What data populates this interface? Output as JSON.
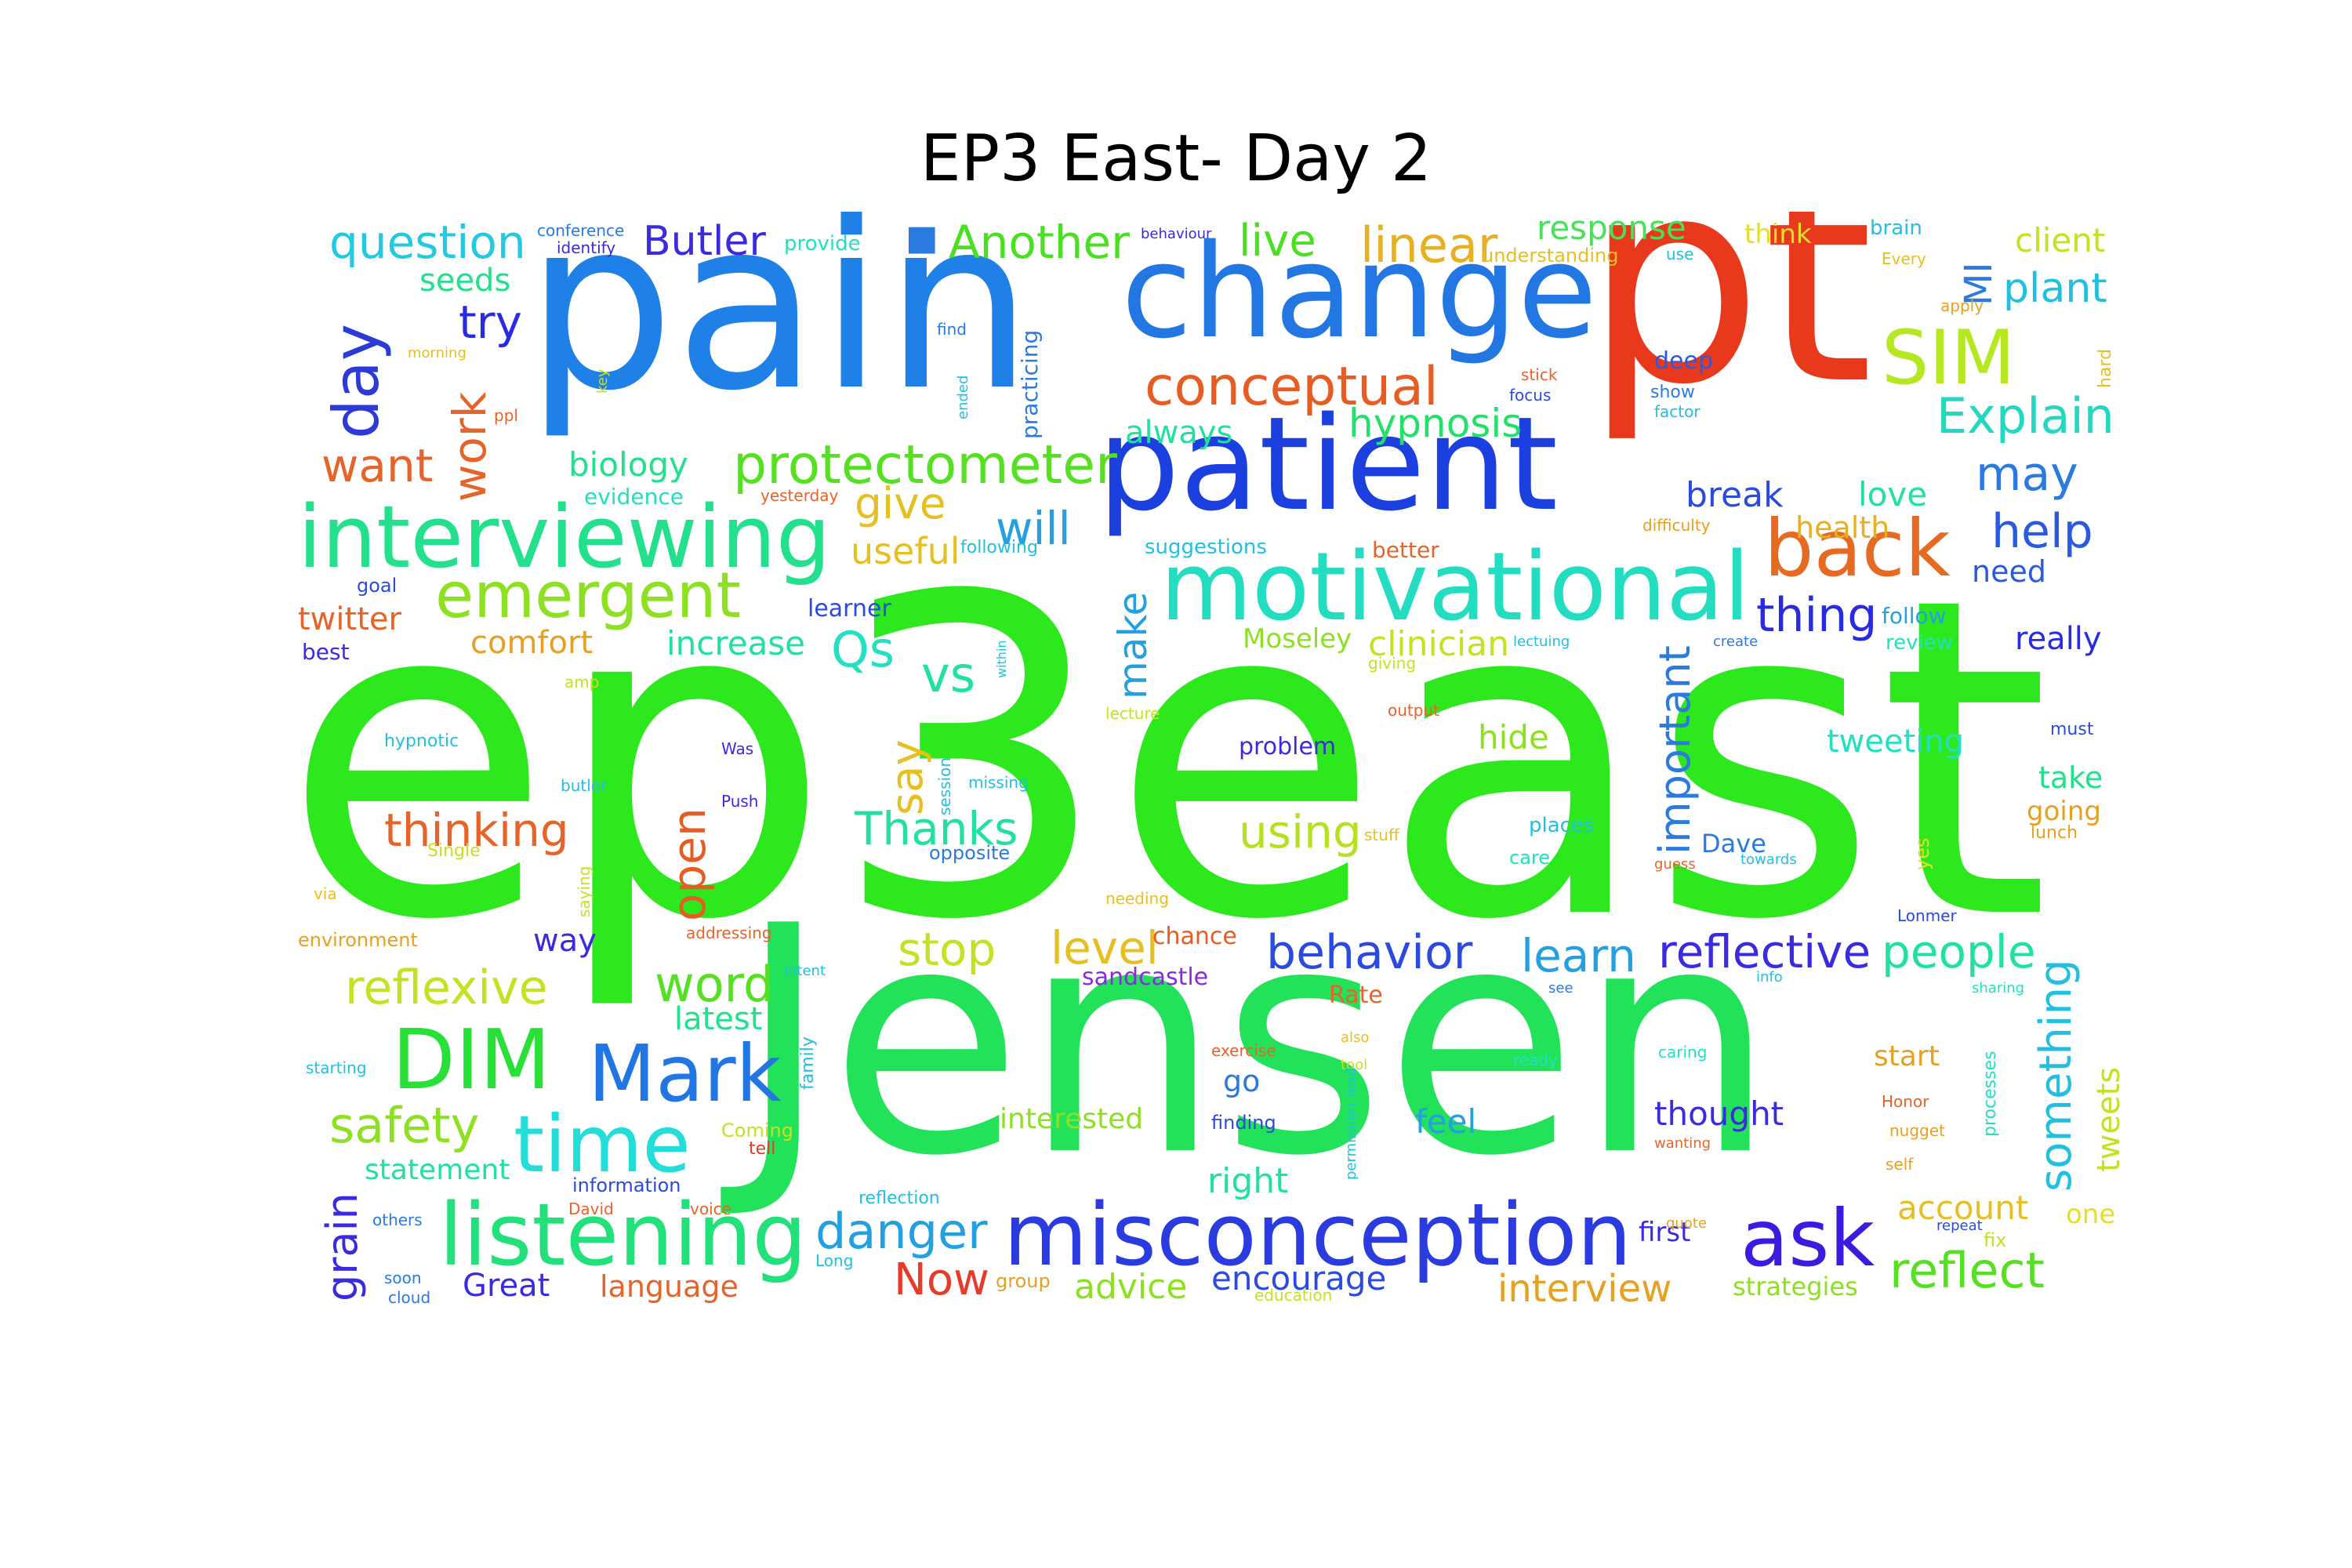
{
  "title": "EP3 East- Day 2",
  "words": {
    "ep3east": {
      "text": "ep3east",
      "color": "#2ee81e"
    },
    "Jensen": {
      "text": "Jensen",
      "color": "#22e25a"
    },
    "pain": {
      "text": "pain",
      "color": "#1f80e8"
    },
    "pt": {
      "text": "pt",
      "color": "#e8391c"
    },
    "change": {
      "text": "change",
      "color": "#2277e3"
    },
    "patient": {
      "text": "patient",
      "color": "#1c3fe0"
    },
    "motivational": {
      "text": "motivational",
      "color": "#22ddc0"
    },
    "interviewing": {
      "text": "interviewing",
      "color": "#22e08c"
    },
    "misconception": {
      "text": "misconception",
      "color": "#2a3be0"
    },
    "listening": {
      "text": "listening",
      "color": "#22e07a"
    },
    "Mark": {
      "text": "Mark",
      "color": "#2276e3"
    },
    "time": {
      "text": "time",
      "color": "#22ddd8"
    },
    "DIM": {
      "text": "DIM",
      "color": "#28e038"
    },
    "ask": {
      "text": "ask",
      "color": "#3a1ce0"
    },
    "back": {
      "text": "back",
      "color": "#e66a22"
    },
    "SIM": {
      "text": "SIM",
      "color": "#b6e822"
    },
    "emergent": {
      "text": "emergent",
      "color": "#8ee022"
    },
    "protectometer": {
      "text": "protectometer",
      "color": "#56e022"
    },
    "conceptual": {
      "text": "conceptual",
      "color": "#e65c22"
    },
    "day": {
      "text": "day",
      "color": "#2c3ad8"
    },
    "question": {
      "text": "question",
      "color": "#22c9e0"
    },
    "Butler": {
      "text": "Butler",
      "color": "#3a2ae0"
    },
    "Another": {
      "text": "Another",
      "color": "#4ae022"
    },
    "live": {
      "text": "live",
      "color": "#4ae022"
    },
    "linear": {
      "text": "linear",
      "color": "#e6b022"
    },
    "response": {
      "text": "response",
      "color": "#4ae05a"
    },
    "client": {
      "text": "client",
      "color": "#c6e022"
    },
    "plant": {
      "text": "plant",
      "color": "#22c0e0"
    },
    "Explain": {
      "text": "Explain",
      "color": "#22d8c0"
    },
    "may": {
      "text": "may",
      "color": "#2a7ae0"
    },
    "help": {
      "text": "help",
      "color": "#2a5ae0"
    },
    "need": {
      "text": "need",
      "color": "#2a5ae0"
    },
    "thing": {
      "text": "thing",
      "color": "#2a2ae0"
    },
    "really": {
      "text": "really",
      "color": "#2a2ae0"
    },
    "health": {
      "text": "health",
      "color": "#e6b022"
    },
    "break": {
      "text": "break",
      "color": "#2a4ae0"
    },
    "love": {
      "text": "love",
      "color": "#22e0a0"
    },
    "deep": {
      "text": "deep",
      "color": "#2a5ae0"
    },
    "hypnosis": {
      "text": "hypnosis",
      "color": "#22e06a"
    },
    "always": {
      "text": "always",
      "color": "#22e0a0"
    },
    "seeds": {
      "text": "seeds",
      "color": "#22e08c"
    },
    "try": {
      "text": "try",
      "color": "#2a2ae0"
    },
    "want": {
      "text": "want",
      "color": "#e6642a"
    },
    "work": {
      "text": "work",
      "color": "#e6642a"
    },
    "biology": {
      "text": "biology",
      "color": "#22e08c"
    },
    "give": {
      "text": "give",
      "color": "#e6c022"
    },
    "useful": {
      "text": "useful",
      "color": "#e6c022"
    },
    "will": {
      "text": "will",
      "color": "#22a0e0"
    },
    "twitter": {
      "text": "twitter",
      "color": "#e6642a"
    },
    "comfort": {
      "text": "comfort",
      "color": "#e6a022"
    },
    "increase": {
      "text": "increase",
      "color": "#22e0a0"
    },
    "Qs": {
      "text": "Qs",
      "color": "#22e0c0"
    },
    "vs": {
      "text": "vs",
      "color": "#22e0a0"
    },
    "make": {
      "text": "make",
      "color": "#22a0e0"
    },
    "Moseley": {
      "text": "Moseley",
      "color": "#8ee022"
    },
    "clinician": {
      "text": "clinician",
      "color": "#c6e022"
    },
    "important": {
      "text": "important",
      "color": "#2a7ae0"
    },
    "hide": {
      "text": "hide",
      "color": "#8ee022"
    },
    "tweeting": {
      "text": "tweeting",
      "color": "#22e0c0"
    },
    "take": {
      "text": "take",
      "color": "#22e08c"
    },
    "going": {
      "text": "going",
      "color": "#e6a022"
    },
    "open": {
      "text": "open",
      "color": "#e65c22"
    },
    "say": {
      "text": "say",
      "color": "#e6c022"
    },
    "thinking": {
      "text": "thinking",
      "color": "#e6642a"
    },
    "Thanks": {
      "text": "Thanks",
      "color": "#22e0a0"
    },
    "using": {
      "text": "using",
      "color": "#b6e022"
    },
    "problem": {
      "text": "problem",
      "color": "#3a2ae0"
    },
    "Dave": {
      "text": "Dave",
      "color": "#2a7ae0"
    },
    "stop": {
      "text": "stop",
      "color": "#c6e022"
    },
    "level": {
      "text": "level",
      "color": "#e6c022"
    },
    "behavior": {
      "text": "behavior",
      "color": "#2a4ae0"
    },
    "learn": {
      "text": "learn",
      "color": "#22a0e0"
    },
    "reflective": {
      "text": "reflective",
      "color": "#3a2ae0"
    },
    "people": {
      "text": "people",
      "color": "#22e0a0"
    },
    "reflexive": {
      "text": "reflexive",
      "color": "#c6e022"
    },
    "word": {
      "text": "word",
      "color": "#56e022"
    },
    "latest": {
      "text": "latest",
      "color": "#22e08c"
    },
    "way": {
      "text": "way",
      "color": "#3a2ae0"
    },
    "safety": {
      "text": "safety",
      "color": "#8ee022"
    },
    "statement": {
      "text": "statement",
      "color": "#22e0a0"
    },
    "grain": {
      "text": "grain",
      "color": "#3a2ae0"
    },
    "Great": {
      "text": "Great",
      "color": "#3a2ae0"
    },
    "language": {
      "text": "language",
      "color": "#e6642a"
    },
    "danger": {
      "text": "danger",
      "color": "#22a0e0"
    },
    "Now": {
      "text": "Now",
      "color": "#e63a2a"
    },
    "advice": {
      "text": "advice",
      "color": "#8ee022"
    },
    "encourage": {
      "text": "encourage",
      "color": "#2a4ae0"
    },
    "interview": {
      "text": "interview",
      "color": "#e6a022"
    },
    "strategies": {
      "text": "strategies",
      "color": "#8ee022"
    },
    "reflect": {
      "text": "reflect",
      "color": "#56e022"
    },
    "account": {
      "text": "account",
      "color": "#e6c022"
    },
    "something": {
      "text": "something",
      "color": "#22c0e0"
    },
    "tweets": {
      "text": "tweets",
      "color": "#c6e022"
    },
    "thought": {
      "text": "thought",
      "color": "#3a2ae0"
    },
    "first": {
      "text": "first",
      "color": "#3a2ae0"
    },
    "go": {
      "text": "go",
      "color": "#2a7ae0"
    },
    "feel": {
      "text": "feel",
      "color": "#22a0e0"
    },
    "right": {
      "text": "right",
      "color": "#22e0a0"
    },
    "interested": {
      "text": "interested",
      "color": "#8ee022"
    },
    "sandcastle": {
      "text": "sandcastle",
      "color": "#8a2ae0"
    },
    "chance": {
      "text": "chance",
      "color": "#e65c22"
    },
    "MI": {
      "text": "MI",
      "color": "#2a7ae0"
    },
    "think": {
      "text": "think",
      "color": "#e6e022"
    },
    "brain": {
      "text": "brain",
      "color": "#22c0e0"
    },
    "learner": {
      "text": "learner",
      "color": "#2a4ae0"
    },
    "Rate": {
      "text": "Rate",
      "color": "#e6642a"
    },
    "start": {
      "text": "start",
      "color": "#e6a022"
    },
    "practicing": {
      "text": "practicing",
      "color": "#2a7ae0"
    },
    "suggestions": {
      "text": "suggestions",
      "color": "#22c0e0"
    },
    "better": {
      "text": "better",
      "color": "#e6642a"
    },
    "following": {
      "text": "following",
      "color": "#22c0e0"
    },
    "follow": {
      "text": "follow",
      "color": "#22a0e0"
    },
    "review": {
      "text": "review",
      "color": "#22e0c0"
    },
    "best": {
      "text": "best",
      "color": "#3a2ae0"
    },
    "goal": {
      "text": "goal",
      "color": "#2a4ae0"
    },
    "evidence": {
      "text": "evidence",
      "color": "#22e0c0"
    },
    "yesterday": {
      "text": "yesterday",
      "color": "#e6642a"
    },
    "conference": {
      "text": "conference",
      "color": "#2a7ae0"
    },
    "identify": {
      "text": "identify",
      "color": "#3a2ae0"
    },
    "provide": {
      "text": "provide",
      "color": "#22e0c0"
    },
    "behaviour": {
      "text": "behaviour",
      "color": "#3a2ae0"
    },
    "understanding": {
      "text": "understanding",
      "color": "#e6c022"
    },
    "hypnotic": {
      "text": "hypnotic",
      "color": "#22c0e0"
    },
    "environment": {
      "text": "environment",
      "color": "#e6a022"
    },
    "single": {
      "text": "Single",
      "color": "#c6e022"
    },
    "places": {
      "text": "places",
      "color": "#22c0e0"
    },
    "care": {
      "text": "care",
      "color": "#22e0c0"
    },
    "Lonmer": {
      "text": "Lonmer",
      "color": "#2a4ae0"
    },
    "yes": {
      "text": "yes",
      "color": "#e6e022"
    },
    "must": {
      "text": "must",
      "color": "#2a4ae0"
    },
    "lunch": {
      "text": "lunch",
      "color": "#e6a022"
    },
    "output": {
      "text": "output",
      "color": "#e6642a"
    },
    "giving": {
      "text": "giving",
      "color": "#c6e022"
    },
    "lecture": {
      "text": "lecture",
      "color": "#c6e022"
    },
    "session": {
      "text": "session",
      "color": "#22c0e0"
    },
    "missing": {
      "text": "missing",
      "color": "#22c0e0"
    },
    "opposite": {
      "text": "opposite",
      "color": "#2a7ae0"
    },
    "stuff": {
      "text": "stuff",
      "color": "#e6c022"
    },
    "family": {
      "text": "family",
      "color": "#22c0e0"
    },
    "information": {
      "text": "information",
      "color": "#2a4ae0"
    },
    "reflection": {
      "text": "reflection",
      "color": "#22c0e0"
    },
    "processes": {
      "text": "processes",
      "color": "#22e0c0"
    },
    "honor": {
      "text": "Honor",
      "color": "#e6642a"
    },
    "nugget": {
      "text": "nugget",
      "color": "#e6a022"
    },
    "self": {
      "text": "self",
      "color": "#e6a022"
    },
    "one": {
      "text": "one",
      "color": "#e6e022"
    },
    "fix": {
      "text": "fix",
      "color": "#c6e022"
    },
    "repeat": {
      "text": "repeat",
      "color": "#2a4ae0"
    },
    "finding": {
      "text": "finding",
      "color": "#2a4ae0"
    },
    "exercise": {
      "text": "exercise",
      "color": "#e6642a"
    },
    "caring": {
      "text": "caring",
      "color": "#22e0c0"
    },
    "ready": {
      "text": "ready",
      "color": "#22e0c0"
    },
    "coming": {
      "text": "Coming",
      "color": "#c6e022"
    },
    "tell": {
      "text": "tell",
      "color": "#e63a2a"
    },
    "group": {
      "text": "group",
      "color": "#e6a022"
    },
    "education": {
      "text": "education",
      "color": "#c6e022"
    },
    "long": {
      "text": "Long",
      "color": "#22c0e0"
    },
    "soon": {
      "text": "soon",
      "color": "#2a7ae0"
    },
    "cloud": {
      "text": "cloud",
      "color": "#2a7ae0"
    },
    "others": {
      "text": "others",
      "color": "#2a7ae0"
    },
    "starting": {
      "text": "starting",
      "color": "#22c0e0"
    },
    "via": {
      "text": "via",
      "color": "#e6c022"
    },
    "amp": {
      "text": "amp",
      "color": "#c6e022"
    },
    "butler_small": {
      "text": "butler",
      "color": "#22c0e0"
    },
    "was": {
      "text": "Was",
      "color": "#3a2ae0"
    },
    "push": {
      "text": "Push",
      "color": "#3a2ae0"
    },
    "morning": {
      "text": "morning",
      "color": "#e6c022"
    },
    "key": {
      "text": "key",
      "color": "#c6e022"
    },
    "ppl": {
      "text": "ppl",
      "color": "#e6642a"
    },
    "find": {
      "text": "find",
      "color": "#2a7ae0"
    },
    "ended": {
      "text": "ended",
      "color": "#22c0e0"
    },
    "stick": {
      "text": "stick",
      "color": "#e6642a"
    },
    "focus": {
      "text": "focus",
      "color": "#2a4ae0"
    },
    "factor": {
      "text": "factor",
      "color": "#22c0e0"
    },
    "show": {
      "text": "show",
      "color": "#2a7ae0"
    },
    "difficulty": {
      "text": "difficulty",
      "color": "#e6a022"
    },
    "use": {
      "text": "use",
      "color": "#22c0e0"
    },
    "every": {
      "text": "Every",
      "color": "#e6c022"
    },
    "apply": {
      "text": "apply",
      "color": "#e6a022"
    },
    "hard": {
      "text": "hard",
      "color": "#e6c022"
    },
    "lectuing": {
      "text": "lectuing",
      "color": "#22c0e0"
    },
    "create": {
      "text": "create",
      "color": "#2a7ae0"
    },
    "addressing": {
      "text": "addressing",
      "color": "#e6642a"
    },
    "intent": {
      "text": "intent",
      "color": "#22c0e0"
    },
    "needing": {
      "text": "needing",
      "color": "#e6c022"
    },
    "saying": {
      "text": "saying",
      "color": "#c6e022"
    },
    "towards": {
      "text": "towards",
      "color": "#22c0e0"
    },
    "guess": {
      "text": "guess",
      "color": "#e6642a"
    },
    "info": {
      "text": "info",
      "color": "#22c0e0"
    },
    "sharing": {
      "text": "sharing",
      "color": "#22e0c0"
    },
    "see": {
      "text": "see",
      "color": "#2a7ae0"
    },
    "wanting": {
      "text": "wanting",
      "color": "#e6642a"
    },
    "also": {
      "text": "also",
      "color": "#e6c022"
    },
    "tool": {
      "text": "tool",
      "color": "#c6e022"
    },
    "permission": {
      "text": "permission",
      "color": "#22c0e0"
    },
    "lead": {
      "text": "lead",
      "color": "#22c0e0"
    },
    "david": {
      "text": "David",
      "color": "#e6642a"
    },
    "voice": {
      "text": "voice",
      "color": "#e6642a"
    },
    "quote": {
      "text": "quote",
      "color": "#e6a022"
    },
    "within": {
      "text": "within",
      "color": "#22c0e0"
    },
    "square_glyph": {
      "text": "■",
      "color": "#2a7ae0"
    }
  }
}
